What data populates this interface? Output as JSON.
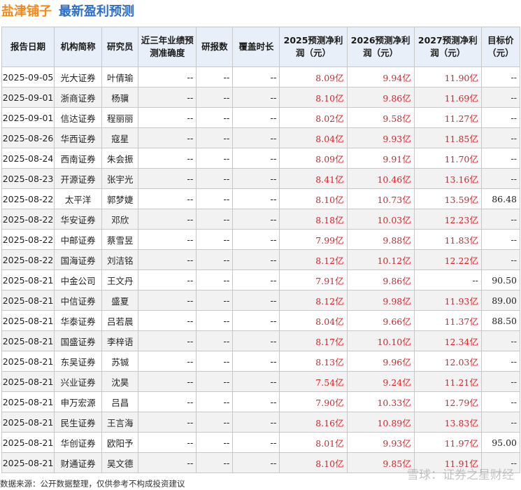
{
  "title": {
    "company": "盐津铺子",
    "subtitle": "最新盈利预测"
  },
  "headers": [
    "报告日期",
    "机构简称",
    "研究员",
    "近三年业绩预测准确度",
    "研报数",
    "覆盖时长",
    "2025预测净利润（元）",
    "2026预测净利润（元）",
    "2027预测净利润（元）",
    "目标价（元）"
  ],
  "rows": [
    {
      "date": "2025-09-05",
      "org": "光大证券",
      "analyst": "叶倩瑜",
      "accuracy": "--",
      "reports": "--",
      "coverage": "--",
      "p2025": "8.09亿",
      "p2026": "9.94亿",
      "p2027": "11.90亿",
      "target": "--"
    },
    {
      "date": "2025-09-01",
      "org": "浙商证券",
      "analyst": "杨骥",
      "accuracy": "--",
      "reports": "--",
      "coverage": "--",
      "p2025": "8.10亿",
      "p2026": "9.86亿",
      "p2027": "11.69亿",
      "target": "--"
    },
    {
      "date": "2025-09-01",
      "org": "信达证券",
      "analyst": "程丽丽",
      "accuracy": "--",
      "reports": "--",
      "coverage": "--",
      "p2025": "8.02亿",
      "p2026": "9.58亿",
      "p2027": "11.27亿",
      "target": "--"
    },
    {
      "date": "2025-08-26",
      "org": "华西证券",
      "analyst": "寇星",
      "accuracy": "--",
      "reports": "--",
      "coverage": "--",
      "p2025": "8.04亿",
      "p2026": "9.93亿",
      "p2027": "11.85亿",
      "target": "--"
    },
    {
      "date": "2025-08-24",
      "org": "西南证券",
      "analyst": "朱会振",
      "accuracy": "--",
      "reports": "--",
      "coverage": "--",
      "p2025": "8.09亿",
      "p2026": "9.91亿",
      "p2027": "11.70亿",
      "target": "--"
    },
    {
      "date": "2025-08-23",
      "org": "开源证券",
      "analyst": "张宇光",
      "accuracy": "--",
      "reports": "--",
      "coverage": "--",
      "p2025": "8.41亿",
      "p2026": "10.46亿",
      "p2027": "13.16亿",
      "target": "--"
    },
    {
      "date": "2025-08-22",
      "org": "太平洋",
      "analyst": "郭梦婕",
      "accuracy": "--",
      "reports": "--",
      "coverage": "--",
      "p2025": "8.10亿",
      "p2026": "10.73亿",
      "p2027": "13.59亿",
      "target": "86.48"
    },
    {
      "date": "2025-08-22",
      "org": "华安证券",
      "analyst": "邓欣",
      "accuracy": "--",
      "reports": "--",
      "coverage": "--",
      "p2025": "8.18亿",
      "p2026": "10.03亿",
      "p2027": "12.23亿",
      "target": "--"
    },
    {
      "date": "2025-08-22",
      "org": "中邮证券",
      "analyst": "蔡雪昱",
      "accuracy": "--",
      "reports": "--",
      "coverage": "--",
      "p2025": "7.99亿",
      "p2026": "9.88亿",
      "p2027": "11.83亿",
      "target": "--"
    },
    {
      "date": "2025-08-22",
      "org": "国海证券",
      "analyst": "刘洁铭",
      "accuracy": "--",
      "reports": "--",
      "coverage": "--",
      "p2025": "8.12亿",
      "p2026": "10.12亿",
      "p2027": "12.22亿",
      "target": "--"
    },
    {
      "date": "2025-08-21",
      "org": "中金公司",
      "analyst": "王文丹",
      "accuracy": "--",
      "reports": "--",
      "coverage": "--",
      "p2025": "7.91亿",
      "p2026": "9.86亿",
      "p2027": "--",
      "target": "90.50"
    },
    {
      "date": "2025-08-21",
      "org": "中信证券",
      "analyst": "盛夏",
      "accuracy": "--",
      "reports": "--",
      "coverage": "--",
      "p2025": "8.12亿",
      "p2026": "9.98亿",
      "p2027": "11.93亿",
      "target": "89.00"
    },
    {
      "date": "2025-08-21",
      "org": "华泰证券",
      "analyst": "吕若晨",
      "accuracy": "--",
      "reports": "--",
      "coverage": "--",
      "p2025": "8.04亿",
      "p2026": "9.66亿",
      "p2027": "11.37亿",
      "target": "88.50"
    },
    {
      "date": "2025-08-21",
      "org": "国盛证券",
      "analyst": "李梓语",
      "accuracy": "--",
      "reports": "--",
      "coverage": "--",
      "p2025": "8.17亿",
      "p2026": "10.10亿",
      "p2027": "12.34亿",
      "target": "--"
    },
    {
      "date": "2025-08-21",
      "org": "东吴证券",
      "analyst": "苏铖",
      "accuracy": "--",
      "reports": "--",
      "coverage": "--",
      "p2025": "8.13亿",
      "p2026": "9.96亿",
      "p2027": "12.03亿",
      "target": "--"
    },
    {
      "date": "2025-08-21",
      "org": "兴业证券",
      "analyst": "沈昊",
      "accuracy": "--",
      "reports": "--",
      "coverage": "--",
      "p2025": "7.54亿",
      "p2026": "9.24亿",
      "p2027": "11.21亿",
      "target": "--"
    },
    {
      "date": "2025-08-21",
      "org": "申万宏源",
      "analyst": "吕昌",
      "accuracy": "--",
      "reports": "--",
      "coverage": "--",
      "p2025": "7.90亿",
      "p2026": "10.33亿",
      "p2027": "12.79亿",
      "target": "--"
    },
    {
      "date": "2025-08-21",
      "org": "民生证券",
      "analyst": "王言海",
      "accuracy": "--",
      "reports": "--",
      "coverage": "--",
      "p2025": "8.16亿",
      "p2026": "10.89亿",
      "p2027": "13.83亿",
      "target": "--"
    },
    {
      "date": "2025-08-21",
      "org": "华创证券",
      "analyst": "欧阳予",
      "accuracy": "--",
      "reports": "--",
      "coverage": "--",
      "p2025": "8.01亿",
      "p2026": "9.93亿",
      "p2027": "11.97亿",
      "target": "95.00"
    },
    {
      "date": "2025-08-21",
      "org": "财通证券",
      "analyst": "吴文德",
      "accuracy": "--",
      "reports": "--",
      "coverage": "--",
      "p2025": "8.10亿",
      "p2026": "9.85亿",
      "p2027": "11.91亿",
      "target": "--"
    }
  ],
  "footer": "数据来源：公开数据整理，仅供参考不构成投资建议",
  "watermark": "雪球：证券之星财经",
  "bg_watermark": "证券之星",
  "colors": {
    "company": "#f08a1c",
    "subtitle": "#2d6ec8",
    "forecast": "#d8232a",
    "header_bg": "#e9eff8"
  }
}
